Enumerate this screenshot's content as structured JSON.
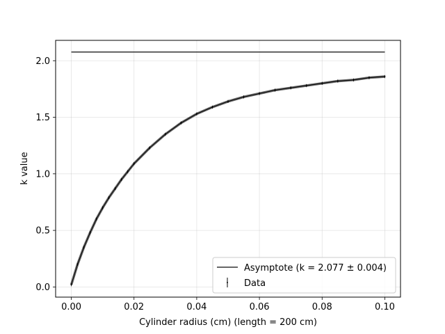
{
  "chart_data": {
    "type": "scatter",
    "xlabel": "Cylinder radius (cm) (length = 200 cm)",
    "ylabel": "k value",
    "xlim": [
      -0.005,
      0.105
    ],
    "ylim": [
      -0.09,
      2.18
    ],
    "xticks": [
      0.0,
      0.02,
      0.04,
      0.06,
      0.08,
      0.1
    ],
    "xtick_labels": [
      "0.00",
      "0.02",
      "0.04",
      "0.06",
      "0.08",
      "0.10"
    ],
    "yticks": [
      0.0,
      0.5,
      1.0,
      1.5,
      2.0
    ],
    "ytick_labels": [
      "0.0",
      "0.5",
      "1.0",
      "1.5",
      "2.0"
    ],
    "grid": true,
    "legend_position": "lower-right",
    "series": [
      {
        "name": "Asymptote (k = 2.077 ± 0.004)",
        "kind": "line",
        "color": "#333333",
        "x": [
          0.0,
          0.1
        ],
        "y": [
          2.077,
          2.077
        ]
      },
      {
        "name": "Data",
        "kind": "errorbar",
        "color": "#000000",
        "x": [
          0.0,
          0.002,
          0.004,
          0.006,
          0.008,
          0.01,
          0.012,
          0.014,
          0.016,
          0.018,
          0.02,
          0.025,
          0.03,
          0.035,
          0.04,
          0.045,
          0.05,
          0.055,
          0.06,
          0.065,
          0.07,
          0.075,
          0.08,
          0.085,
          0.09,
          0.095,
          0.1
        ],
        "y": [
          0.02,
          0.2,
          0.35,
          0.48,
          0.6,
          0.7,
          0.79,
          0.87,
          0.95,
          1.02,
          1.09,
          1.23,
          1.35,
          1.45,
          1.53,
          1.59,
          1.64,
          1.68,
          1.71,
          1.74,
          1.76,
          1.78,
          1.8,
          1.82,
          1.83,
          1.85,
          1.86
        ]
      }
    ]
  }
}
